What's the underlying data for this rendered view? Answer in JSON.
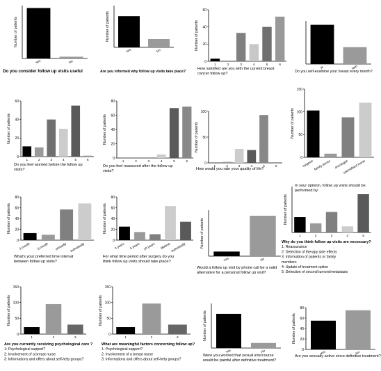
{
  "chart_data": [
    {
      "type": "bar",
      "ylabel": "Number of patients",
      "categories": [
        "Yes",
        "No"
      ],
      "values": [
        143,
        5
      ],
      "ylim": [
        0,
        150
      ],
      "yticks": [],
      "colors": [
        "#000000",
        "#9a9a9a"
      ],
      "caption": [
        "Do you consider follow up visits useful"
      ]
    },
    {
      "type": "bar",
      "ylabel": "Number of patients",
      "categories": [
        "Yes",
        "No"
      ],
      "values": [
        112,
        30
      ],
      "ylim": [
        0,
        150
      ],
      "yticks": [],
      "colors": [
        "#000000",
        "#9a9a9a"
      ],
      "caption": [
        "Are you informed why follow up visits take place?"
      ]
    },
    {
      "type": "bar",
      "ylabel": "Number of patients",
      "categories": [
        "1",
        "2",
        "3",
        "4",
        "5",
        "6"
      ],
      "values": [
        3,
        0,
        33,
        20,
        40,
        52
      ],
      "ylim": [
        0,
        60
      ],
      "yticks": [
        0,
        20,
        40,
        60
      ],
      "colors": [
        "#000000",
        "#666666",
        "#808080",
        "#c8c8c8",
        "#707070",
        "#999999"
      ],
      "caption": [
        "How satisfied are you with the current breast",
        "cancer follow up?"
      ]
    },
    {
      "type": "bar",
      "ylabel": "",
      "categories": [
        "ja",
        "nein"
      ],
      "values": [
        100,
        43
      ],
      "ylim": [
        0,
        110
      ],
      "yticks": [],
      "colors": [
        "#000000",
        "#9a9a9a"
      ],
      "caption": [
        "Do you self-examine your breast every month?"
      ]
    },
    {
      "type": "bar",
      "ylabel": "Number of patients",
      "categories": [
        "1",
        "2",
        "3",
        "4",
        "5",
        "6"
      ],
      "values": [
        11,
        10,
        40,
        30,
        55,
        1
      ],
      "ylim": [
        0,
        60
      ],
      "yticks": [
        0,
        20,
        40,
        60
      ],
      "colors": [
        "#000000",
        "#9a9a9a",
        "#707070",
        "#cccccc",
        "#5a5a5a",
        "#999999"
      ],
      "caption": [
        "Do you feel worried before the follow up",
        "visits?"
      ]
    },
    {
      "type": "bar",
      "ylabel": "Number of patients",
      "categories": [
        "1",
        "2",
        "3",
        "4",
        "5",
        "6"
      ],
      "values": [
        0,
        0,
        0,
        5,
        70,
        72
      ],
      "ylim": [
        0,
        80
      ],
      "yticks": [
        0,
        20,
        40,
        60,
        80
      ],
      "colors": [
        "#000000",
        "#9a9a9a",
        "#808080",
        "#cccccc",
        "#5a5a5a",
        "#888888"
      ],
      "caption": [
        "Do you feel reassured after the follow up",
        "visits?"
      ]
    },
    {
      "type": "bar",
      "ylabel": "Number of patients",
      "categories": [
        "1",
        "2",
        "3",
        "4",
        "5",
        "6"
      ],
      "values": [
        0,
        2,
        27,
        25,
        93,
        0
      ],
      "ylim": [
        0,
        100
      ],
      "yticks": [
        0,
        50,
        100
      ],
      "colors": [
        "#000000",
        "#9a9a9a",
        "#cccccc",
        "#5a5a5a",
        "#888888",
        "#999999"
      ],
      "caption": [
        "How would you rate your quality of life?"
      ]
    },
    {
      "type": "bar",
      "ylabel": "Number of patients",
      "categories": [
        "surgeon",
        "family doctor",
        "oncologist",
        "specialised nurse"
      ],
      "values": [
        103,
        8,
        88,
        120
      ],
      "ylim": [
        0,
        150
      ],
      "yticks": [
        0,
        50,
        100,
        150
      ],
      "colors": [
        "#000000",
        "#9a9a9a",
        "#808080",
        "#cccccc"
      ],
      "caption": [
        "In your opinion, follow up visits should be",
        "performed by:"
      ]
    },
    {
      "type": "bar",
      "ylabel": "Number of patients",
      "categories": [
        "3 month",
        "6 month",
        "annually",
        "individually"
      ],
      "values": [
        13,
        10,
        57,
        68
      ],
      "ylim": [
        0,
        80
      ],
      "yticks": [
        0,
        20,
        40,
        60,
        80
      ],
      "colors": [
        "#000000",
        "#9a9a9a",
        "#808080",
        "#cccccc"
      ],
      "caption": [
        "What's your preferred time interval",
        "between follow up visits?"
      ]
    },
    {
      "type": "bar",
      "ylabel": "Number of patients",
      "categories": [
        "3 years",
        "5 years",
        "10 years",
        "lifetime",
        "individually"
      ],
      "values": [
        25,
        15,
        11,
        63,
        34
      ],
      "ylim": [
        0,
        80
      ],
      "yticks": [
        0,
        20,
        40,
        60,
        80
      ],
      "colors": [
        "#000000",
        "#9a9a9a",
        "#808080",
        "#cccccc",
        "#5a5a5a"
      ],
      "caption": [
        "For what time period after surgery do you",
        "think follow up visits should take place?"
      ]
    },
    {
      "type": "bar",
      "ylabel": "Number of patients",
      "categories": [
        "Yes",
        "No"
      ],
      "values": [
        15,
        132
      ],
      "ylim": [
        0,
        150
      ],
      "yticks": [],
      "colors": [
        "#000000",
        "#9a9a9a"
      ],
      "caption": [
        "Would a follow up visit by phone call be a valid",
        "alternative for a personal follow up visit?"
      ]
    },
    {
      "type": "bar",
      "ylabel": "Number of patients",
      "categories": [
        "1",
        "2",
        "3",
        "4",
        "5"
      ],
      "values": [
        50,
        30,
        67,
        20,
        125
      ],
      "ylim": [
        0,
        150
      ],
      "yticks": [],
      "colors": [
        "#000000",
        "#9a9a9a",
        "#808080",
        "#cccccc",
        "#5a5a5a"
      ],
      "caption": [
        "Why do you think follow up visits are necessary?",
        "1: Reassurance",
        "2: Detection of therapy side effects",
        "3: Information of patients or family",
        "members",
        "4: Update of treatment option",
        "5: Detection of second tumors/metastasis"
      ]
    },
    {
      "type": "bar",
      "ylabel": "Number of patients",
      "categories": [
        "1",
        "2",
        "3"
      ],
      "values": [
        22,
        95,
        30
      ],
      "ylim": [
        0,
        150
      ],
      "yticks": [
        0,
        50,
        100,
        150
      ],
      "colors": [
        "#000000",
        "#9a9a9a",
        "#666666"
      ],
      "caption": [
        "Are you currently receiving psychological care ?",
        "1: Psychological support?",
        "2: Involvement of a breast nurse",
        "3: Informations and offers about self-help groups?"
      ]
    },
    {
      "type": "bar",
      "ylabel": "Number of patients",
      "categories": [
        "1",
        "2",
        "3"
      ],
      "values": [
        22,
        97,
        30
      ],
      "ylim": [
        0,
        150
      ],
      "yticks": [
        0,
        50,
        100,
        150
      ],
      "colors": [
        "#000000",
        "#9a9a9a",
        "#666666"
      ],
      "caption": [
        "What are meaningful factors concerning follow up?",
        "1: Psychological support?",
        "2: Involvement of a breast nurse",
        "3: Informations and offers about self-help groups?"
      ]
    },
    {
      "type": "bar",
      "ylabel": "Number of patients",
      "categories": [
        "Yes",
        "No"
      ],
      "values": [
        115,
        17
      ],
      "ylim": [
        0,
        150
      ],
      "yticks": [],
      "colors": [
        "#000000",
        "#9a9a9a"
      ],
      "caption": [
        "Were you worried that sexual intercourse",
        "would be painful after definitive treatment?"
      ]
    },
    {
      "type": "bar",
      "ylabel": "Number of patients",
      "categories": [
        "Yes",
        "No"
      ],
      "values": [
        55,
        75
      ],
      "ylim": [
        0,
        80
      ],
      "yticks": [
        0,
        20,
        40,
        60,
        80
      ],
      "colors": [
        "#000000",
        "#9a9a9a"
      ],
      "caption": [
        "Are you sexually active since definitive treatment?"
      ]
    }
  ]
}
